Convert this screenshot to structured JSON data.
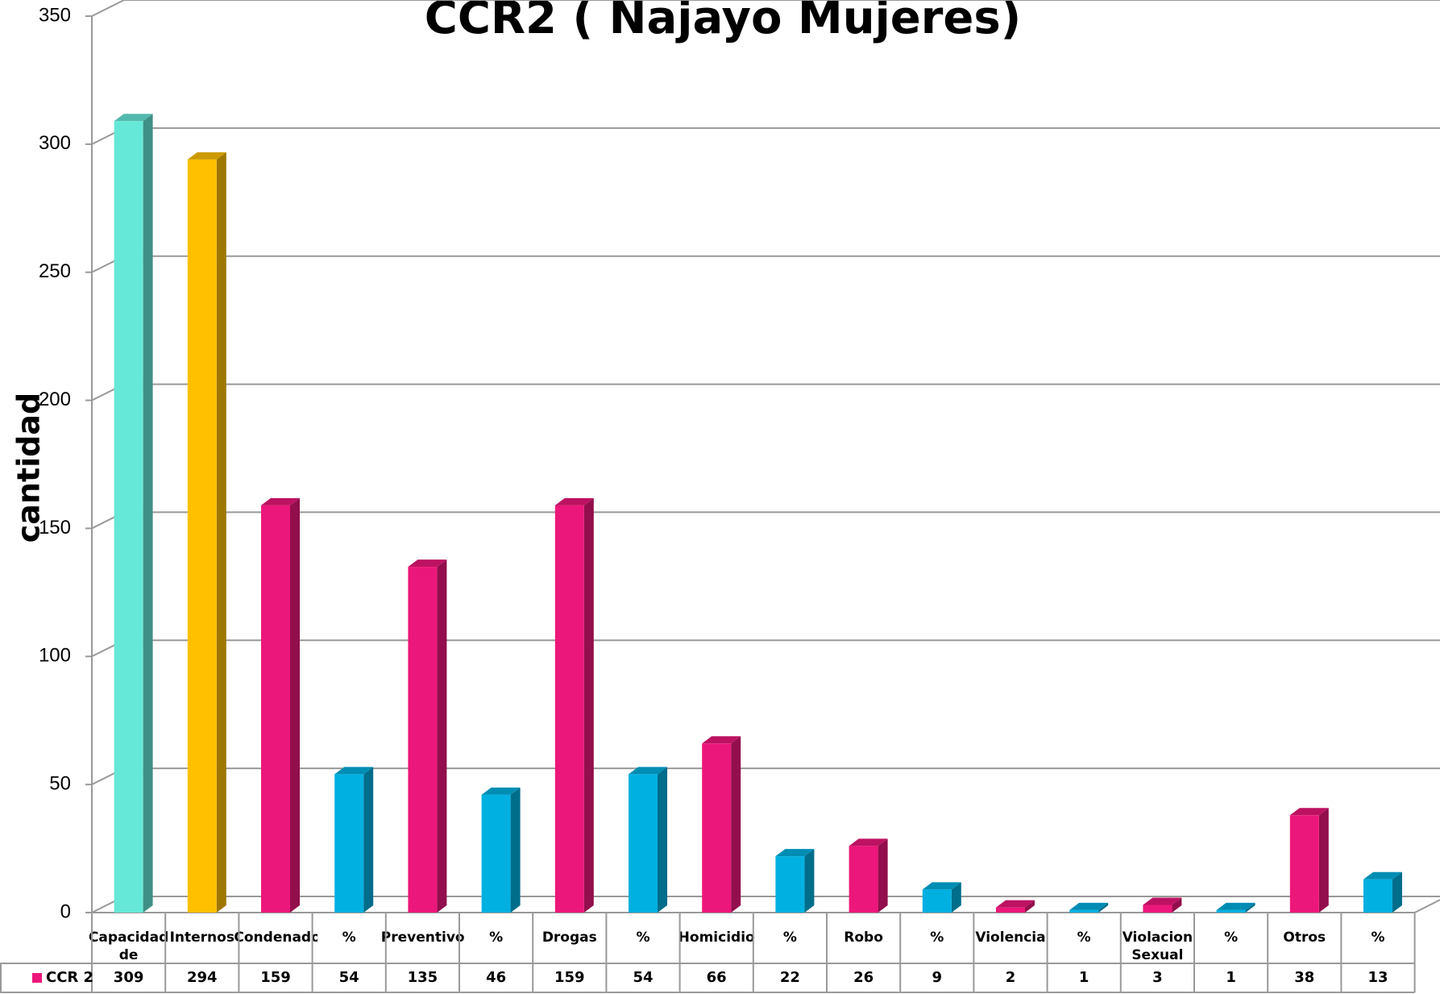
{
  "chart_data": {
    "type": "bar3d",
    "title": "CCR2 ( Najayo Mujeres)",
    "ylabel": "cantidad",
    "categories": [
      "Capacidad de Internos",
      "Internos",
      "Condenados",
      "%",
      "Preventivos",
      "%",
      "Drogas",
      "%",
      "Homicidio",
      "%",
      "Robo",
      "%",
      "Violencia",
      "%",
      "Violacion Sexual",
      "%",
      "Otros",
      "%"
    ],
    "series": [
      {
        "name": "CCR 2",
        "color": "#ec177a",
        "values": [
          309,
          294,
          159,
          54,
          135,
          46,
          159,
          54,
          66,
          22,
          26,
          9,
          2,
          1,
          3,
          1,
          38,
          13
        ],
        "colors": [
          "#66e8d8",
          "#ffc000",
          "#ec177a",
          "#00b0e0",
          "#ec177a",
          "#00b0e0",
          "#ec177a",
          "#00b0e0",
          "#ec177a",
          "#00b0e0",
          "#ec177a",
          "#00b0e0",
          "#ec177a",
          "#00b0e0",
          "#ec177a",
          "#00b0e0",
          "#ec177a",
          "#00b0e0"
        ]
      }
    ],
    "ylim": [
      0,
      350
    ],
    "yticks": [
      0,
      50,
      100,
      150,
      200,
      250,
      300,
      350
    ],
    "grid": true,
    "data_table": true
  }
}
